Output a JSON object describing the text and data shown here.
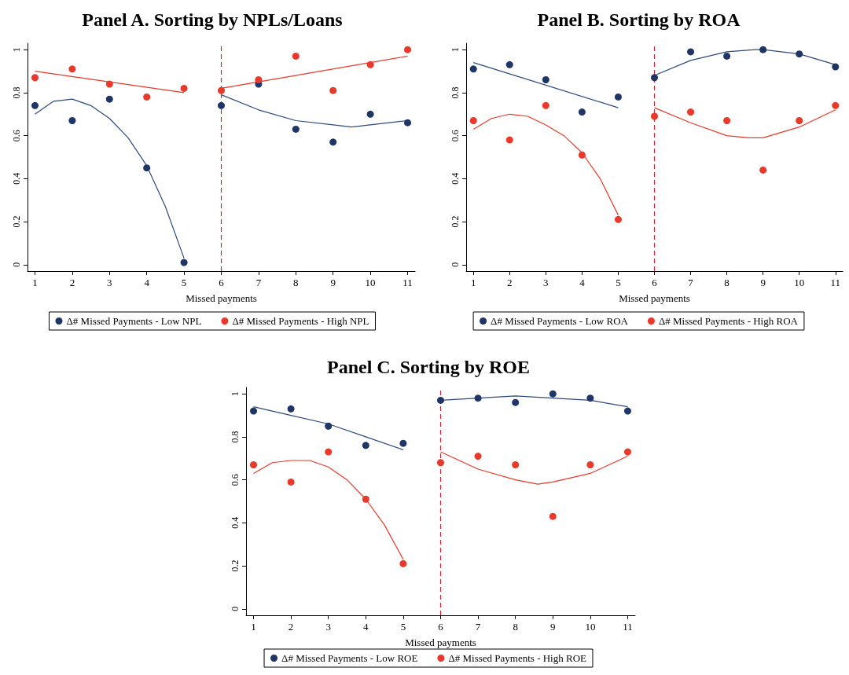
{
  "chart_data": [
    {
      "type": "scatter",
      "title": "Panel A. Sorting by NPLs/Loans",
      "xlabel": "Missed payments",
      "xlim": [
        0.8,
        11.2
      ],
      "xticks": [
        1,
        2,
        3,
        4,
        5,
        6,
        7,
        8,
        9,
        10,
        11
      ],
      "ylim": [
        -0.03,
        1.03
      ],
      "yticks": [
        0,
        0.2,
        0.4,
        0.6,
        0.8,
        1
      ],
      "grid": false,
      "legend": "bottom",
      "ref_lines": [
        {
          "axis": "x",
          "value": 6,
          "color": "#c8283a",
          "line_style": "dashed"
        }
      ],
      "series": [
        {
          "name": "Δ# Missed Payments - Low NPL",
          "color": "#1f3565",
          "marker": "circle",
          "x": [
            1,
            2,
            3,
            4,
            5,
            6,
            7,
            8,
            9,
            10,
            11
          ],
          "values": [
            0.74,
            0.67,
            0.77,
            0.45,
            0.01,
            0.74,
            0.84,
            0.63,
            0.57,
            0.7,
            0.66
          ]
        },
        {
          "name": "Δ# Missed Payments - High NPL",
          "color": "#e8392b",
          "marker": "circle",
          "x": [
            1,
            2,
            3,
            4,
            5,
            6,
            7,
            8,
            9,
            10,
            11
          ],
          "values": [
            0.87,
            0.91,
            0.84,
            0.78,
            0.82,
            0.81,
            0.86,
            0.97,
            0.81,
            0.93,
            1.0
          ]
        },
        {
          "type": "line",
          "color": "#2d4a7c",
          "marker": "none",
          "x": [
            1,
            1.5,
            2,
            2.5,
            3,
            3.5,
            4,
            4.5,
            5
          ],
          "values": [
            0.7,
            0.76,
            0.77,
            0.74,
            0.68,
            0.59,
            0.46,
            0.27,
            0.03
          ]
        },
        {
          "type": "line",
          "color": "#2d4a7c",
          "marker": "none",
          "x": [
            6,
            7,
            8,
            9,
            9.5,
            10,
            11
          ],
          "values": [
            0.79,
            0.72,
            0.67,
            0.65,
            0.64,
            0.65,
            0.67
          ]
        },
        {
          "type": "line",
          "color": "#e8392b",
          "marker": "none",
          "x": [
            1,
            5
          ],
          "values": [
            0.9,
            0.8
          ]
        },
        {
          "type": "line",
          "color": "#e8392b",
          "marker": "none",
          "x": [
            6,
            11
          ],
          "values": [
            0.82,
            0.97
          ]
        }
      ]
    },
    {
      "type": "scatter",
      "title": "Panel B. Sorting by ROA",
      "xlabel": "Missed payments",
      "xlim": [
        0.8,
        11.2
      ],
      "xticks": [
        1,
        2,
        3,
        4,
        5,
        6,
        7,
        8,
        9,
        10,
        11
      ],
      "ylim": [
        -0.03,
        1.03
      ],
      "yticks": [
        0,
        0.2,
        0.4,
        0.6,
        0.8,
        1
      ],
      "grid": false,
      "legend": "bottom",
      "ref_lines": [
        {
          "axis": "x",
          "value": 6,
          "color": "#c8283a",
          "line_style": "dashed"
        }
      ],
      "series": [
        {
          "name": "Δ# Missed Payments - Low ROA",
          "color": "#1f3565",
          "marker": "circle",
          "x": [
            1,
            2,
            3,
            4,
            5,
            6,
            7,
            8,
            9,
            10,
            11
          ],
          "values": [
            0.91,
            0.93,
            0.86,
            0.71,
            0.78,
            0.87,
            0.99,
            0.97,
            1.0,
            0.98,
            0.92
          ]
        },
        {
          "name": "Δ# Missed Payments - High ROA",
          "color": "#e8392b",
          "marker": "circle",
          "x": [
            1,
            2,
            3,
            4,
            5,
            6,
            7,
            8,
            9,
            10,
            11
          ],
          "values": [
            0.67,
            0.58,
            0.74,
            0.51,
            0.21,
            0.69,
            0.71,
            0.67,
            0.44,
            0.67,
            0.74
          ]
        },
        {
          "type": "line",
          "color": "#2d4a7c",
          "marker": "none",
          "x": [
            1,
            5
          ],
          "values": [
            0.94,
            0.73
          ]
        },
        {
          "type": "line",
          "color": "#2d4a7c",
          "marker": "none",
          "x": [
            6,
            7,
            8,
            8.8,
            9,
            10,
            11
          ],
          "values": [
            0.88,
            0.95,
            0.99,
            1.0,
            1.0,
            0.98,
            0.93
          ]
        },
        {
          "type": "line",
          "color": "#e8392b",
          "marker": "none",
          "x": [
            1,
            1.5,
            2,
            2.5,
            3,
            3.5,
            4,
            4.5,
            5
          ],
          "values": [
            0.63,
            0.68,
            0.7,
            0.69,
            0.65,
            0.6,
            0.52,
            0.4,
            0.23
          ]
        },
        {
          "type": "line",
          "color": "#e8392b",
          "marker": "none",
          "x": [
            6,
            7,
            8,
            8.6,
            9,
            10,
            11
          ],
          "values": [
            0.73,
            0.66,
            0.6,
            0.59,
            0.59,
            0.64,
            0.72
          ]
        }
      ]
    },
    {
      "type": "scatter",
      "title": "Panel C. Sorting by ROE",
      "xlabel": "Missed payments",
      "xlim": [
        0.8,
        11.2
      ],
      "xticks": [
        1,
        2,
        3,
        4,
        5,
        6,
        7,
        8,
        9,
        10,
        11
      ],
      "ylim": [
        -0.03,
        1.03
      ],
      "yticks": [
        0,
        0.2,
        0.4,
        0.6,
        0.8,
        1
      ],
      "grid": false,
      "legend": "bottom",
      "ref_lines": [
        {
          "axis": "x",
          "value": 6,
          "color": "#c8283a",
          "line_style": "dashed"
        }
      ],
      "series": [
        {
          "name": "Δ# Missed Payments - Low ROE",
          "color": "#1f3565",
          "marker": "circle",
          "x": [
            1,
            2,
            3,
            4,
            5,
            6,
            7,
            8,
            9,
            10,
            11
          ],
          "values": [
            0.92,
            0.93,
            0.85,
            0.76,
            0.77,
            0.97,
            0.98,
            0.96,
            1.0,
            0.98,
            0.92
          ]
        },
        {
          "name": "Δ# Missed Payments - High ROE",
          "color": "#e8392b",
          "marker": "circle",
          "x": [
            1,
            2,
            3,
            4,
            5,
            6,
            7,
            8,
            9,
            10,
            11
          ],
          "values": [
            0.67,
            0.59,
            0.73,
            0.51,
            0.21,
            0.68,
            0.71,
            0.67,
            0.43,
            0.67,
            0.73
          ]
        },
        {
          "type": "line",
          "color": "#2d4a7c",
          "marker": "none",
          "x": [
            1,
            2,
            3,
            4,
            5
          ],
          "values": [
            0.94,
            0.9,
            0.86,
            0.8,
            0.74
          ]
        },
        {
          "type": "line",
          "color": "#2d4a7c",
          "marker": "none",
          "x": [
            6,
            7,
            8,
            9,
            10,
            11
          ],
          "values": [
            0.97,
            0.98,
            0.99,
            0.98,
            0.97,
            0.94
          ]
        },
        {
          "type": "line",
          "color": "#e8392b",
          "marker": "none",
          "x": [
            1,
            1.5,
            2,
            2.5,
            3,
            3.5,
            4,
            4.5,
            5
          ],
          "values": [
            0.63,
            0.68,
            0.69,
            0.69,
            0.66,
            0.6,
            0.51,
            0.39,
            0.23
          ]
        },
        {
          "type": "line",
          "color": "#e8392b",
          "marker": "none",
          "x": [
            6,
            7,
            8,
            8.6,
            9,
            10,
            11
          ],
          "values": [
            0.73,
            0.65,
            0.6,
            0.58,
            0.59,
            0.63,
            0.71
          ]
        }
      ]
    }
  ]
}
